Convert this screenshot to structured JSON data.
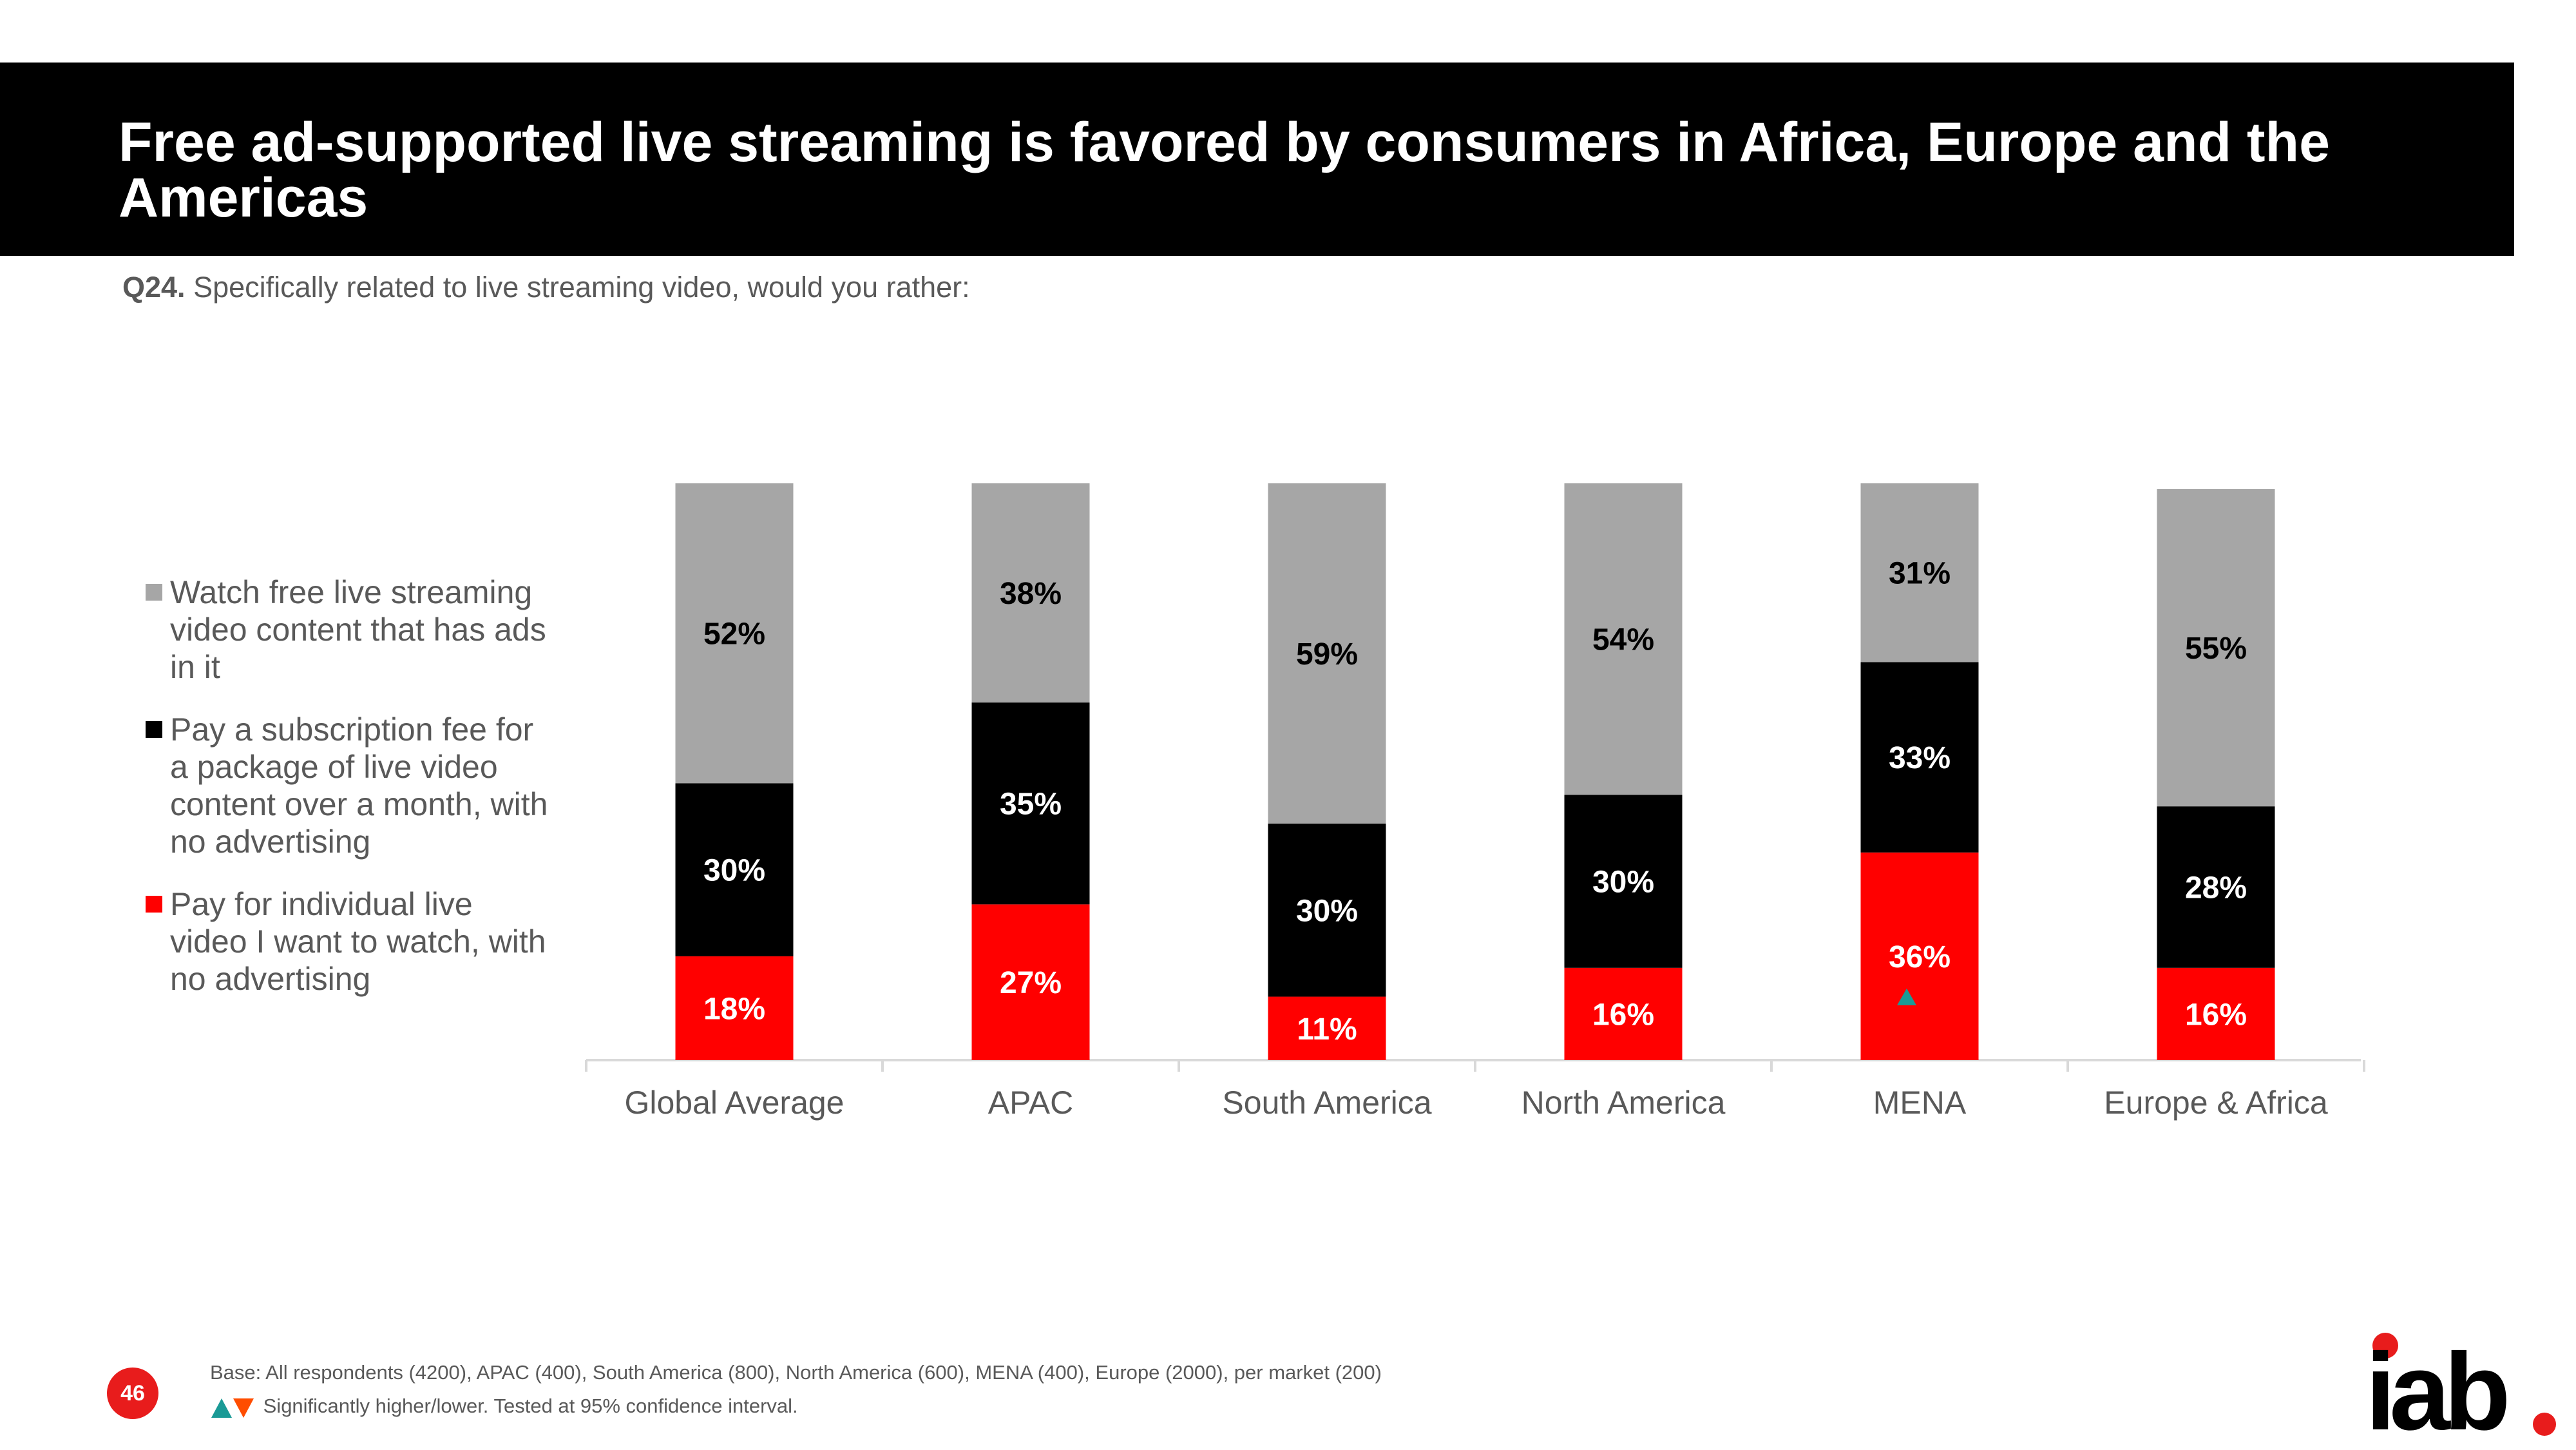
{
  "header": {
    "title": "Free ad-supported live streaming is favored by consumers in Africa, Europe and the Americas"
  },
  "question": {
    "label": "Q24.",
    "text": "Specifically related to live streaming video, would you rather:"
  },
  "legend": [
    {
      "label": "Watch free live streaming video content that has ads in it",
      "color": "#a6a6a6"
    },
    {
      "label": "Pay a subscription fee for a package of live video content over a month, with no advertising",
      "color": "#000000"
    },
    {
      "label": "Pay for individual live video I want to watch, with no advertising",
      "color": "#ff0000"
    }
  ],
  "chart_data": {
    "type": "bar",
    "stacked": true,
    "categories": [
      "Global Average",
      "APAC",
      "South America",
      "North America",
      "MENA",
      "Europe & Africa"
    ],
    "series": [
      {
        "name": "Pay for individual live video I want to watch, with no advertising",
        "color": "#ff0000",
        "values": [
          18,
          27,
          11,
          16,
          36,
          16
        ],
        "labels": [
          "18%",
          "27%",
          "11%",
          "16%",
          "36%",
          "16%"
        ]
      },
      {
        "name": "Pay a subscription fee for a package of live video content over a month, with no advertising",
        "color": "#000000",
        "values": [
          30,
          35,
          30,
          30,
          33,
          28
        ],
        "labels": [
          "30%",
          "35%",
          "30%",
          "30%",
          "33%",
          "28%"
        ]
      },
      {
        "name": "Watch free live streaming video content that has ads in it",
        "color": "#a6a6a6",
        "values": [
          52,
          38,
          59,
          54,
          31,
          55
        ],
        "labels": [
          "52%",
          "38%",
          "59%",
          "54%",
          "31%",
          "55%"
        ]
      }
    ],
    "significance": [
      {
        "category": "MENA",
        "series": "Pay for individual live video I want to watch, with no advertising",
        "direction": "higher",
        "color": "#1a9a96"
      }
    ],
    "ylim": [
      0,
      100
    ],
    "title": "",
    "xlabel": "",
    "ylabel": ""
  },
  "footer": {
    "base": "Base: All respondents (4200), APAC (400), South America (800), North America (600), MENA (400), Europe (2000), per market (200)",
    "significance_note": "Significantly higher/lower. Tested at 95% confidence interval.",
    "up_color": "#1a9a96",
    "down_color": "#ff4d00",
    "page_number": "46"
  },
  "logo": {
    "text": "iab",
    "dot_color": "#e81c1c"
  }
}
